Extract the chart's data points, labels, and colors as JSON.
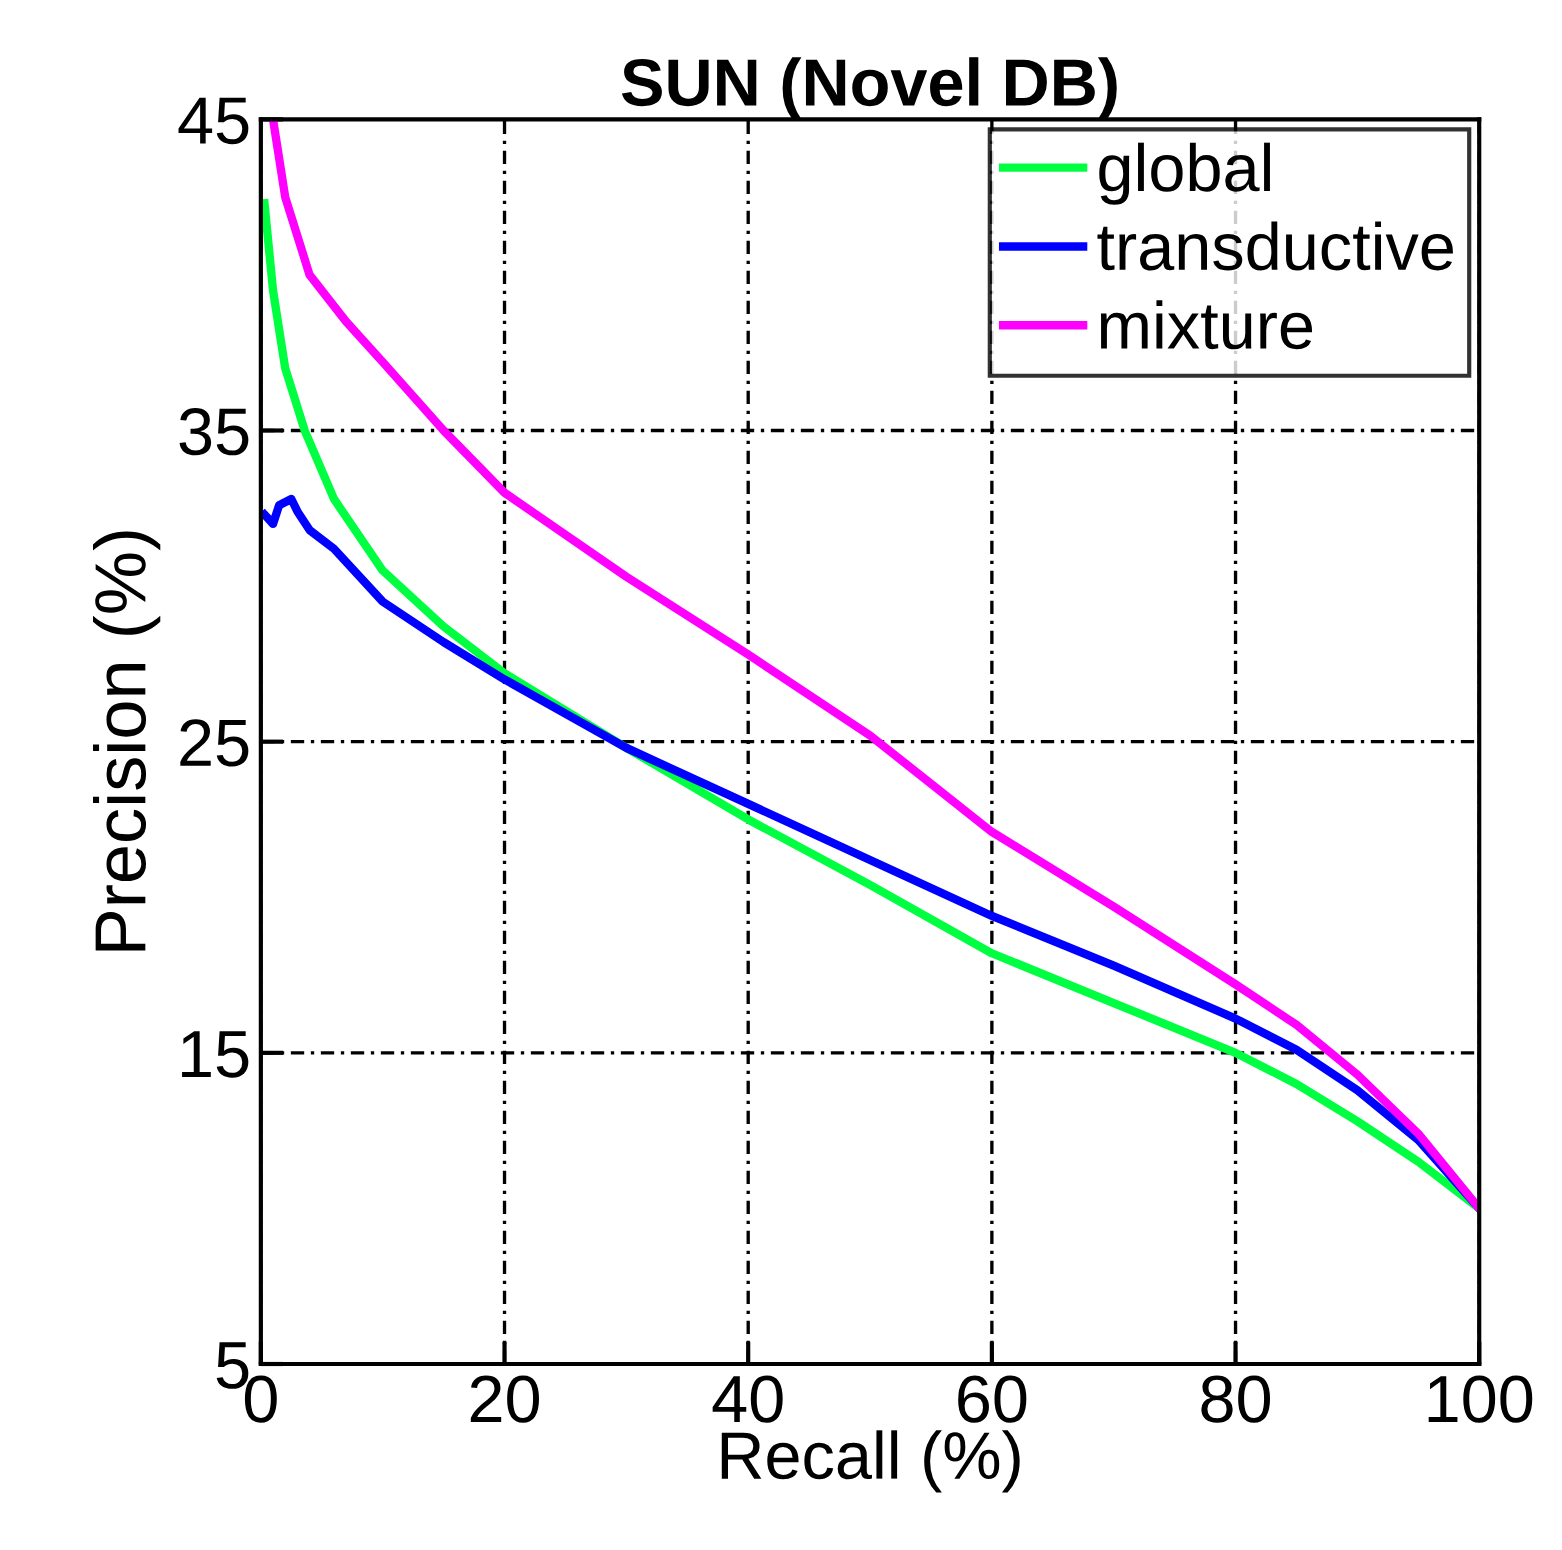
{
  "chart_data": {
    "type": "line",
    "title": "SUN (Novel DB)",
    "xlabel": "Recall (%)",
    "ylabel": "Precision (%)",
    "xlim": [
      0,
      100
    ],
    "ylim": [
      5,
      45
    ],
    "xticks": [
      0,
      20,
      40,
      60,
      80,
      100
    ],
    "yticks": [
      5,
      15,
      25,
      35,
      45
    ],
    "grid": true,
    "legend": "top right",
    "line_style": "solid",
    "marker": "none",
    "series": [
      {
        "name": "global",
        "color": "#00ff40",
        "x": [
          0.3,
          1,
          2,
          3.6,
          6,
          10,
          15,
          20,
          30,
          40,
          50,
          60,
          70,
          80,
          85,
          90,
          95,
          100
        ],
        "values": [
          42.3,
          39.5,
          37,
          35,
          32.8,
          30.5,
          28.7,
          27.2,
          24.8,
          22.5,
          20.4,
          18.2,
          16.6,
          15,
          14,
          12.8,
          11.5,
          10
        ]
      },
      {
        "name": "transductive",
        "color": "#0000ff",
        "x": [
          0.3,
          1,
          1.5,
          2.5,
          3,
          4,
          6,
          10,
          15,
          20,
          30,
          40,
          50,
          60,
          70,
          80,
          85,
          90,
          95,
          100
        ],
        "values": [
          32.3,
          32,
          32.6,
          32.8,
          32.4,
          31.8,
          31.2,
          29.5,
          28.2,
          27,
          24.8,
          23,
          21.2,
          19.4,
          17.8,
          16.1,
          15.1,
          13.8,
          12.2,
          10
        ]
      },
      {
        "name": "mixture",
        "color": "#ff00ff",
        "x": [
          1,
          2,
          4,
          7,
          10,
          15,
          20,
          30,
          40,
          50,
          60,
          70,
          80,
          85,
          90,
          95,
          100
        ],
        "values": [
          45,
          42.5,
          40,
          38.5,
          37.2,
          35,
          33,
          30.3,
          27.8,
          25.2,
          22.1,
          19.7,
          17.2,
          15.9,
          14.3,
          12.4,
          10
        ]
      }
    ]
  }
}
